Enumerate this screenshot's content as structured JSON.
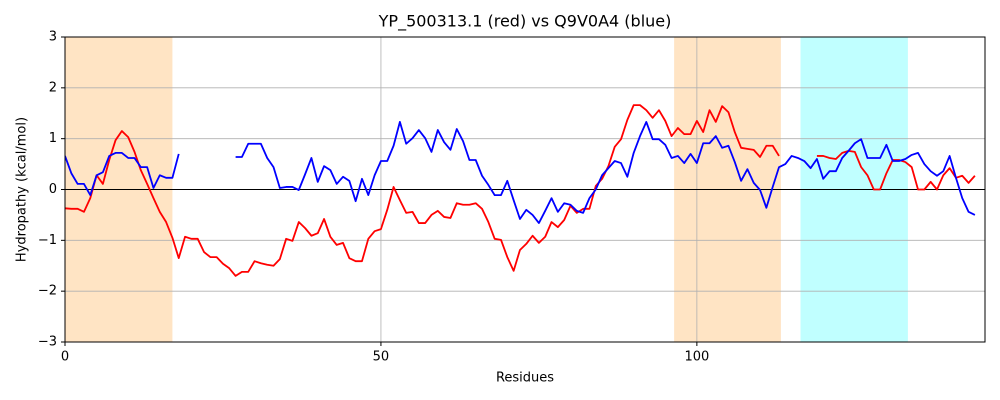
{
  "chart_data": {
    "type": "line",
    "title": "YP_500313.1 (red) vs Q9V0A4 (blue)",
    "x_label": "Residues",
    "y_label": "Hydropathy (kcal/mol)",
    "x": [
      0,
      1,
      2,
      3,
      4,
      5,
      6,
      7,
      8,
      9,
      10,
      11,
      12,
      13,
      14,
      15,
      16,
      17,
      18,
      19,
      20,
      21,
      22,
      23,
      24,
      25,
      26,
      27,
      28,
      29,
      30,
      31,
      32,
      33,
      34,
      35,
      36,
      37,
      38,
      39,
      40,
      41,
      42,
      43,
      44,
      45,
      46,
      47,
      48,
      49,
      50,
      51,
      52,
      53,
      54,
      55,
      56,
      57,
      58,
      59,
      60,
      61,
      62,
      63,
      64,
      65,
      66,
      67,
      68,
      69,
      70,
      71,
      72,
      73,
      74,
      75,
      76,
      77,
      78,
      79,
      80,
      81,
      82,
      83,
      84,
      85,
      86,
      87,
      88,
      89,
      90,
      91,
      92,
      93,
      94,
      95,
      96,
      97,
      98,
      99,
      100,
      101,
      102,
      103,
      104,
      105,
      106,
      107,
      108,
      109,
      110,
      111,
      112,
      113,
      114,
      115,
      116,
      117,
      118,
      119,
      120,
      121,
      122,
      123,
      124,
      125,
      126,
      127,
      128,
      129,
      130,
      131,
      132,
      133,
      134,
      135,
      136,
      137,
      138,
      139,
      140,
      141,
      142,
      143,
      144
    ],
    "series": [
      {
        "color": "#ff0000",
        "values": [
          -0.37,
          -0.38,
          -0.38,
          -0.44,
          -0.17,
          0.28,
          0.11,
          0.58,
          0.97,
          1.15,
          1.03,
          0.74,
          0.38,
          0.11,
          -0.17,
          -0.44,
          -0.64,
          -0.95,
          -1.35,
          -0.93,
          -0.97,
          -0.97,
          -1.23,
          -1.33,
          -1.33,
          -1.46,
          -1.55,
          -1.7,
          -1.62,
          -1.62,
          -1.41,
          -1.45,
          -1.48,
          -1.5,
          -1.37,
          -0.97,
          -1.01,
          -0.64,
          -0.76,
          -0.91,
          -0.86,
          -0.58,
          -0.93,
          -1.09,
          -1.05,
          -1.35,
          -1.41,
          -1.41,
          -0.97,
          -0.82,
          -0.78,
          -0.4,
          0.05,
          -0.21,
          -0.46,
          -0.44,
          -0.66,
          -0.66,
          -0.5,
          -0.42,
          -0.54,
          -0.56,
          -0.27,
          -0.3,
          -0.3,
          -0.27,
          -0.38,
          -0.64,
          -0.97,
          -0.99,
          -1.33,
          -1.6,
          -1.19,
          -1.07,
          -0.91,
          -1.05,
          -0.93,
          -0.64,
          -0.74,
          -0.6,
          -0.32,
          -0.46,
          -0.38,
          -0.38,
          0.07,
          0.21,
          0.46,
          0.84,
          0.99,
          1.37,
          1.66,
          1.66,
          1.56,
          1.41,
          1.56,
          1.35,
          1.05,
          1.21,
          1.09,
          1.09,
          1.35,
          1.13,
          1.56,
          1.33,
          1.64,
          1.52,
          1.13,
          0.82,
          0.8,
          0.78,
          0.64,
          0.86,
          0.86,
          0.66,
          null,
          null,
          null,
          null,
          null,
          0.66,
          0.66,
          0.62,
          0.6,
          0.72,
          0.76,
          0.74,
          0.44,
          0.28,
          0,
          0,
          0.32,
          0.58,
          0.58,
          0.54,
          0.44,
          0,
          0,
          0.15,
          0,
          0.28,
          0.42,
          0.23,
          0.27,
          0.13,
          0.27
        ]
      },
      {
        "color": "#0000ff",
        "values": [
          0.66,
          0.32,
          0.11,
          0.11,
          -0.11,
          0.28,
          0.34,
          0.66,
          0.72,
          0.72,
          0.62,
          0.62,
          0.44,
          0.44,
          0.03,
          0.28,
          0.23,
          0.23,
          0.7,
          null,
          null,
          null,
          null,
          null,
          null,
          null,
          null,
          0.64,
          0.64,
          0.9,
          0.9,
          0.9,
          0.62,
          0.44,
          0.03,
          0.05,
          0.05,
          -0.01,
          0.3,
          0.62,
          0.15,
          0.46,
          0.38,
          0.11,
          0.25,
          0.17,
          -0.23,
          0.21,
          -0.11,
          0.28,
          0.56,
          0.56,
          0.86,
          1.33,
          0.9,
          1.01,
          1.17,
          1.01,
          0.74,
          1.17,
          0.93,
          0.78,
          1.19,
          0.95,
          0.58,
          0.58,
          0.27,
          0.09,
          -0.11,
          -0.11,
          0.17,
          -0.21,
          -0.58,
          -0.4,
          -0.5,
          -0.66,
          -0.42,
          -0.17,
          -0.44,
          -0.27,
          -0.3,
          -0.42,
          -0.46,
          -0.17,
          0,
          0.28,
          0.42,
          0.56,
          0.52,
          0.25,
          0.72,
          1.05,
          1.33,
          0.99,
          0.99,
          0.88,
          0.62,
          0.66,
          0.52,
          0.7,
          0.52,
          0.91,
          0.91,
          1.05,
          0.82,
          0.86,
          0.54,
          0.17,
          0.4,
          0.13,
          -0.01,
          -0.36,
          0.05,
          0.44,
          0.5,
          0.66,
          0.62,
          0.56,
          0.42,
          0.6,
          0.21,
          0.36,
          0.36,
          0.62,
          0.76,
          0.91,
          0.99,
          0.62,
          0.62,
          0.62,
          0.88,
          0.56,
          0.56,
          0.6,
          0.68,
          0.72,
          0.5,
          0.36,
          0.27,
          0.36,
          0.66,
          0.23,
          -0.17,
          -0.44,
          -0.5
        ]
      }
    ],
    "shaded_regions": [
      {
        "xlim": [
          0,
          17
        ],
        "color": "#ffe4c4"
      },
      {
        "xlim": [
          96.4,
          113.3
        ],
        "color": "#ffe4c4"
      },
      {
        "xlim": [
          116.4,
          133.4
        ],
        "color": "#c0ffff"
      }
    ],
    "hline": 0,
    "xlim": [
      0,
      145.6
    ],
    "ylim": [
      -3,
      3
    ],
    "xticks": [
      0,
      50,
      100
    ],
    "yticks": [
      {
        "value": -3,
        "label": "−3"
      },
      {
        "value": -2,
        "label": "−2"
      },
      {
        "value": -1,
        "label": "−1"
      },
      0,
      1,
      2,
      3
    ],
    "grid": true
  }
}
